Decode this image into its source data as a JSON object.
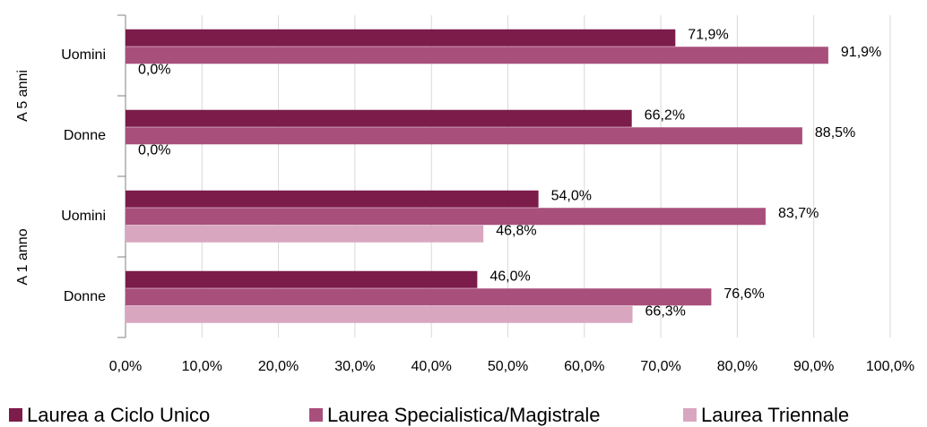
{
  "chart_data": {
    "type": "bar",
    "orientation": "horizontal",
    "groups": [
      "A 5 anni",
      "A 1 anno"
    ],
    "categories": [
      "Uomini",
      "Donne",
      "Uomini",
      "Donne"
    ],
    "series": [
      {
        "name": "Laurea a Ciclo Unico",
        "color": "#7b1c4a",
        "values": [
          71.9,
          66.2,
          54.0,
          46.0
        ],
        "value_labels": [
          "71,9%",
          "66,2%",
          "54,0%",
          "46,0%"
        ]
      },
      {
        "name": "Laurea Specialistica/Magistrale",
        "color": "#a84f7b",
        "values": [
          91.9,
          88.5,
          83.7,
          76.6
        ],
        "value_labels": [
          "91,9%",
          "88,5%",
          "83,7%",
          "76,6%"
        ]
      },
      {
        "name": "Laurea Triennale",
        "color": "#d9a6c0",
        "values": [
          0.0,
          0.0,
          46.8,
          66.3
        ],
        "value_labels": [
          "0,0%",
          "0,0%",
          "46,8%",
          "66,3%"
        ]
      }
    ],
    "xlim": [
      0,
      100
    ],
    "xticks": [
      {
        "value": 0,
        "label": "0,0%"
      },
      {
        "value": 10,
        "label": "10,0%"
      },
      {
        "value": 20,
        "label": "20,0%"
      },
      {
        "value": 30,
        "label": "30,0%"
      },
      {
        "value": 40,
        "label": "40,0%"
      },
      {
        "value": 50,
        "label": "50,0%"
      },
      {
        "value": 60,
        "label": "60,0%"
      },
      {
        "value": 70,
        "label": "70,0%"
      },
      {
        "value": 80,
        "label": "80,0%"
      },
      {
        "value": 90,
        "label": "90,0%"
      },
      {
        "value": 100,
        "label": "100,0%"
      }
    ],
    "grid": true,
    "legend": "bottom"
  }
}
